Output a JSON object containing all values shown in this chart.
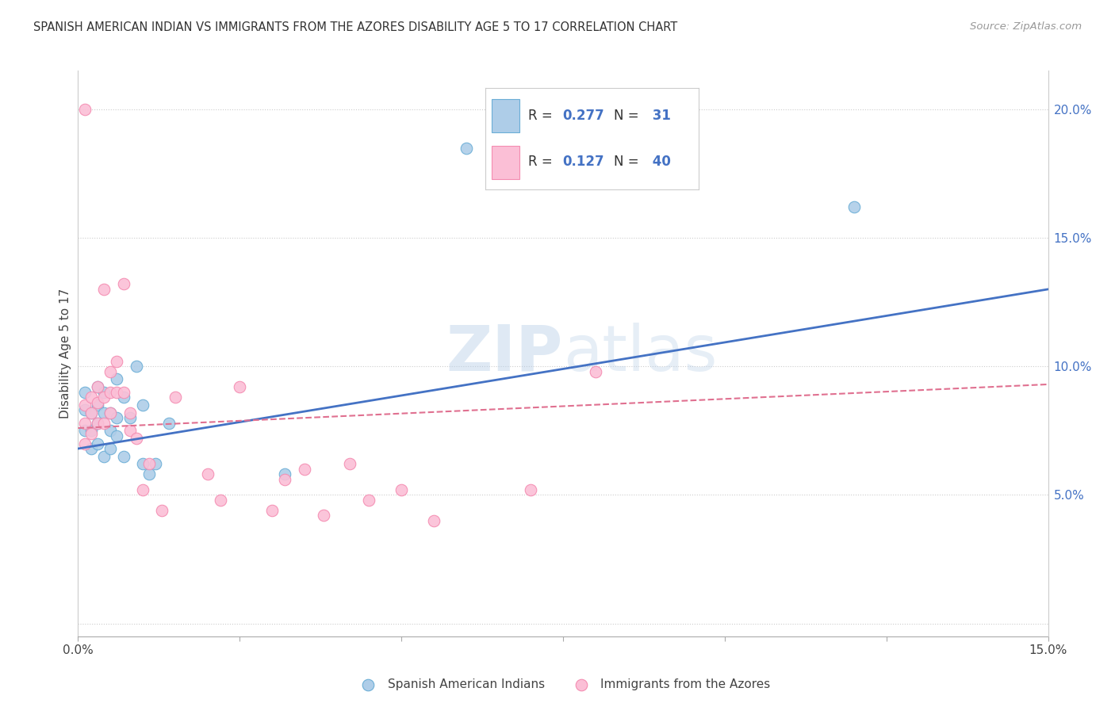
{
  "title": "SPANISH AMERICAN INDIAN VS IMMIGRANTS FROM THE AZORES DISABILITY AGE 5 TO 17 CORRELATION CHART",
  "source": "Source: ZipAtlas.com",
  "ylabel": "Disability Age 5 to 17",
  "xlim": [
    0.0,
    0.15
  ],
  "ylim": [
    -0.005,
    0.215
  ],
  "yticks": [
    0.0,
    0.05,
    0.1,
    0.15,
    0.2
  ],
  "ytick_labels": [
    "",
    "5.0%",
    "10.0%",
    "15.0%",
    "20.0%"
  ],
  "xticks": [
    0.0,
    0.025,
    0.05,
    0.075,
    0.1,
    0.125,
    0.15
  ],
  "xtick_labels": [
    "0.0%",
    "",
    "",
    "",
    "",
    "",
    "15.0%"
  ],
  "blue_R": 0.277,
  "blue_N": 31,
  "pink_R": 0.127,
  "pink_N": 40,
  "blue_color": "#6baed6",
  "blue_fill": "#aecde8",
  "pink_color": "#f48cb1",
  "pink_fill": "#fbbfd6",
  "blue_line_color": "#4472c4",
  "pink_line_color": "#e07090",
  "watermark": "ZIPatlas",
  "legend_label_blue": "Spanish American Indians",
  "legend_label_pink": "Immigrants from the Azores",
  "blue_line_x": [
    0.0,
    0.15
  ],
  "blue_line_y": [
    0.068,
    0.13
  ],
  "pink_line_x": [
    0.0,
    0.15
  ],
  "pink_line_y": [
    0.076,
    0.093
  ],
  "blue_x": [
    0.001,
    0.001,
    0.001,
    0.002,
    0.002,
    0.002,
    0.003,
    0.003,
    0.003,
    0.003,
    0.004,
    0.004,
    0.004,
    0.005,
    0.005,
    0.005,
    0.006,
    0.006,
    0.006,
    0.007,
    0.007,
    0.008,
    0.009,
    0.01,
    0.01,
    0.011,
    0.012,
    0.014,
    0.032,
    0.06,
    0.12
  ],
  "blue_y": [
    0.09,
    0.083,
    0.075,
    0.082,
    0.075,
    0.068,
    0.092,
    0.085,
    0.078,
    0.07,
    0.09,
    0.082,
    0.065,
    0.082,
    0.075,
    0.068,
    0.095,
    0.08,
    0.073,
    0.088,
    0.065,
    0.08,
    0.1,
    0.085,
    0.062,
    0.058,
    0.062,
    0.078,
    0.058,
    0.185,
    0.162
  ],
  "pink_x": [
    0.001,
    0.001,
    0.001,
    0.001,
    0.002,
    0.002,
    0.002,
    0.003,
    0.003,
    0.003,
    0.004,
    0.004,
    0.004,
    0.005,
    0.005,
    0.005,
    0.006,
    0.006,
    0.007,
    0.007,
    0.008,
    0.008,
    0.009,
    0.01,
    0.011,
    0.013,
    0.015,
    0.02,
    0.022,
    0.025,
    0.03,
    0.032,
    0.035,
    0.038,
    0.042,
    0.045,
    0.05,
    0.055,
    0.07,
    0.08
  ],
  "pink_y": [
    0.2,
    0.085,
    0.078,
    0.07,
    0.088,
    0.082,
    0.074,
    0.092,
    0.086,
    0.078,
    0.13,
    0.088,
    0.078,
    0.098,
    0.09,
    0.082,
    0.102,
    0.09,
    0.132,
    0.09,
    0.082,
    0.075,
    0.072,
    0.052,
    0.062,
    0.044,
    0.088,
    0.058,
    0.048,
    0.092,
    0.044,
    0.056,
    0.06,
    0.042,
    0.062,
    0.048,
    0.052,
    0.04,
    0.052,
    0.098
  ]
}
